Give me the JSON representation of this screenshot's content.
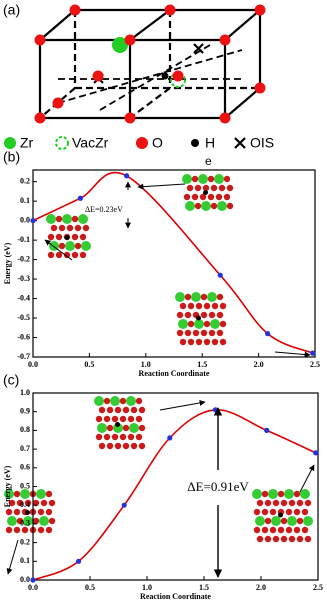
{
  "panel_a": {
    "label": "(a)",
    "legend": [
      "Zr",
      "VacZr",
      "O",
      "H",
      "OIS"
    ]
  },
  "chart_data": [
    {
      "type": "line",
      "panel_label": "(b)",
      "note": "e",
      "xlabel": "Reaction Coordinate",
      "ylabel": "Energy (eV)",
      "x": [
        0,
        0.42,
        0.83,
        1.66,
        2.08,
        2.48
      ],
      "series": [
        {
          "color": "#e00000",
          "marker_color": "#2233dd",
          "values": [
            0,
            0.115,
            0.23,
            -0.28,
            -0.58,
            -0.68
          ]
        }
      ],
      "xlim": [
        0,
        2.5
      ],
      "ylim": [
        -0.7,
        0.26
      ],
      "xticks": [
        {
          "value": 0,
          "label": "0.0"
        },
        0.5,
        {
          "value": 1,
          "label": "1.0"
        },
        1.5,
        {
          "value": 2,
          "label": "2.0"
        },
        2.5
      ],
      "yticks": [
        0.2,
        0.1,
        {
          "value": 0,
          "label": "0.0"
        },
        -0.1,
        -0.2,
        -0.3,
        -0.4,
        -0.5,
        -0.6,
        -0.7
      ],
      "annotation": "ΔE=0.23eV"
    },
    {
      "type": "line",
      "panel_label": "(c)",
      "xlabel": "Reaction Coordinate",
      "ylabel": "Energy (eV)",
      "x": [
        0,
        0.4,
        0.8,
        1.2,
        1.6,
        2.05,
        2.48
      ],
      "series": [
        {
          "color": "#e00000",
          "marker_color": "#2233dd",
          "values": [
            0,
            0.1,
            0.4,
            0.76,
            0.91,
            0.8,
            0.68
          ]
        }
      ],
      "xlim": [
        0,
        2.5
      ],
      "ylim": [
        0,
        1
      ],
      "xticks": [
        {
          "value": 0,
          "label": "0.0"
        },
        0.5,
        {
          "value": 1,
          "label": "1.0"
        },
        1.5,
        {
          "value": 2,
          "label": "2.0"
        },
        2.5
      ],
      "yticks": [
        {
          "value": 0,
          "label": "0.0"
        },
        0.1,
        0.2,
        0.3,
        0.4,
        0.5,
        0.6,
        0.7,
        0.8,
        0.9,
        {
          "value": 1,
          "label": "1.0"
        }
      ],
      "annotation": "ΔE=0.91eV"
    }
  ]
}
